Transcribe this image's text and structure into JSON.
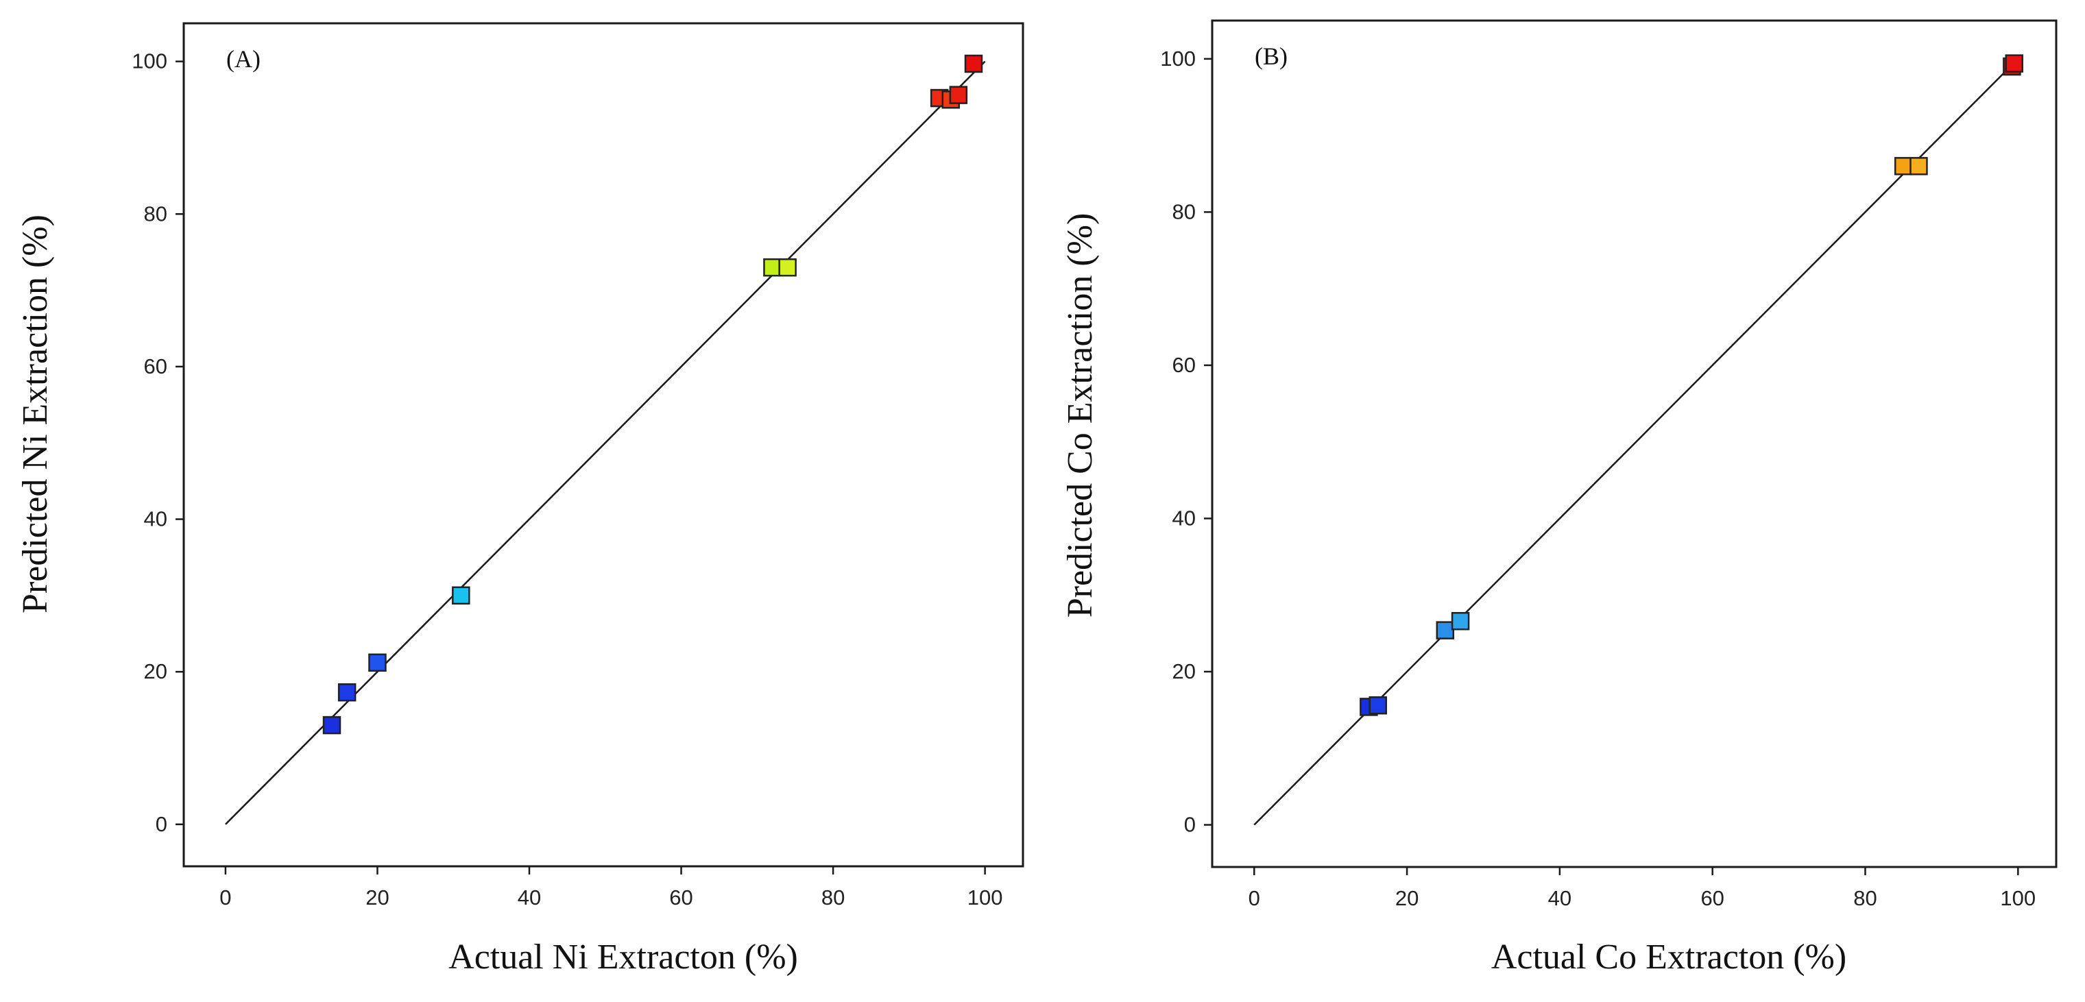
{
  "chart_data": [
    {
      "type": "scatter",
      "panel_label": "(A)",
      "title": "",
      "xlabel": "Actual Ni Extracton (%)",
      "ylabel": "Predicted Ni Extraction (%)",
      "xlim": [
        -5.5,
        105
      ],
      "ylim": [
        -5.5,
        105
      ],
      "xticks": [
        0,
        20,
        40,
        60,
        80,
        100
      ],
      "yticks": [
        0,
        20,
        40,
        60,
        80,
        100
      ],
      "xtick_labels": [
        "0",
        "20",
        "40",
        "60",
        "80",
        "100"
      ],
      "ytick_labels": [
        "0",
        "20",
        "40",
        "60",
        "80",
        "100"
      ],
      "grid": false,
      "reference_line": {
        "from": [
          0,
          0
        ],
        "to": [
          100,
          100
        ]
      },
      "series": [
        {
          "name": "Ni extraction",
          "points": [
            {
              "x": 14.0,
              "y": 13.0,
              "color": "#1a2fe0"
            },
            {
              "x": 16.0,
              "y": 17.3,
              "color": "#1c3ae6"
            },
            {
              "x": 20.0,
              "y": 21.2,
              "color": "#1f55ee"
            },
            {
              "x": 31.0,
              "y": 30.0,
              "color": "#19c2ee"
            },
            {
              "x": 72.0,
              "y": 73.0,
              "color": "#c2ee1a"
            },
            {
              "x": 74.0,
              "y": 73.0,
              "color": "#d4f01e"
            },
            {
              "x": 94.0,
              "y": 95.2,
              "color": "#ee2a12"
            },
            {
              "x": 95.5,
              "y": 95.0,
              "color": "#f03a14"
            },
            {
              "x": 96.5,
              "y": 95.6,
              "color": "#e81e10"
            },
            {
              "x": 98.5,
              "y": 99.7,
              "color": "#e60f0f"
            }
          ]
        }
      ]
    },
    {
      "type": "scatter",
      "panel_label": "(B)",
      "title": "",
      "xlabel": "Actual Co Extracton (%)",
      "ylabel": "Predicted Co Extraction (%)",
      "xlim": [
        -5.5,
        105
      ],
      "ylim": [
        -5.5,
        105
      ],
      "xticks": [
        0,
        20,
        40,
        60,
        80,
        100
      ],
      "yticks": [
        0,
        20,
        40,
        60,
        80,
        100
      ],
      "xtick_labels": [
        "0",
        "20",
        "40",
        "60",
        "80",
        "100"
      ],
      "ytick_labels": [
        "0",
        "20",
        "40",
        "60",
        "80",
        "100"
      ],
      "grid": false,
      "reference_line": {
        "from": [
          0,
          0
        ],
        "to": [
          100,
          100
        ]
      },
      "series": [
        {
          "name": "Co extraction",
          "points": [
            {
              "x": 15.0,
              "y": 15.4,
              "color": "#1830e0"
            },
            {
              "x": 16.2,
              "y": 15.6,
              "color": "#1a3ce6"
            },
            {
              "x": 25.0,
              "y": 25.4,
              "color": "#2a8fe8"
            },
            {
              "x": 27.0,
              "y": 26.6,
              "color": "#2fa6ec"
            },
            {
              "x": 85.0,
              "y": 86.0,
              "color": "#f5a114"
            },
            {
              "x": 87.0,
              "y": 86.0,
              "color": "#f7ae1e"
            },
            {
              "x": 99.2,
              "y": 99.0,
              "color": "#d80f0f"
            },
            {
              "x": 99.5,
              "y": 99.4,
              "color": "#e81414"
            }
          ]
        }
      ]
    }
  ]
}
